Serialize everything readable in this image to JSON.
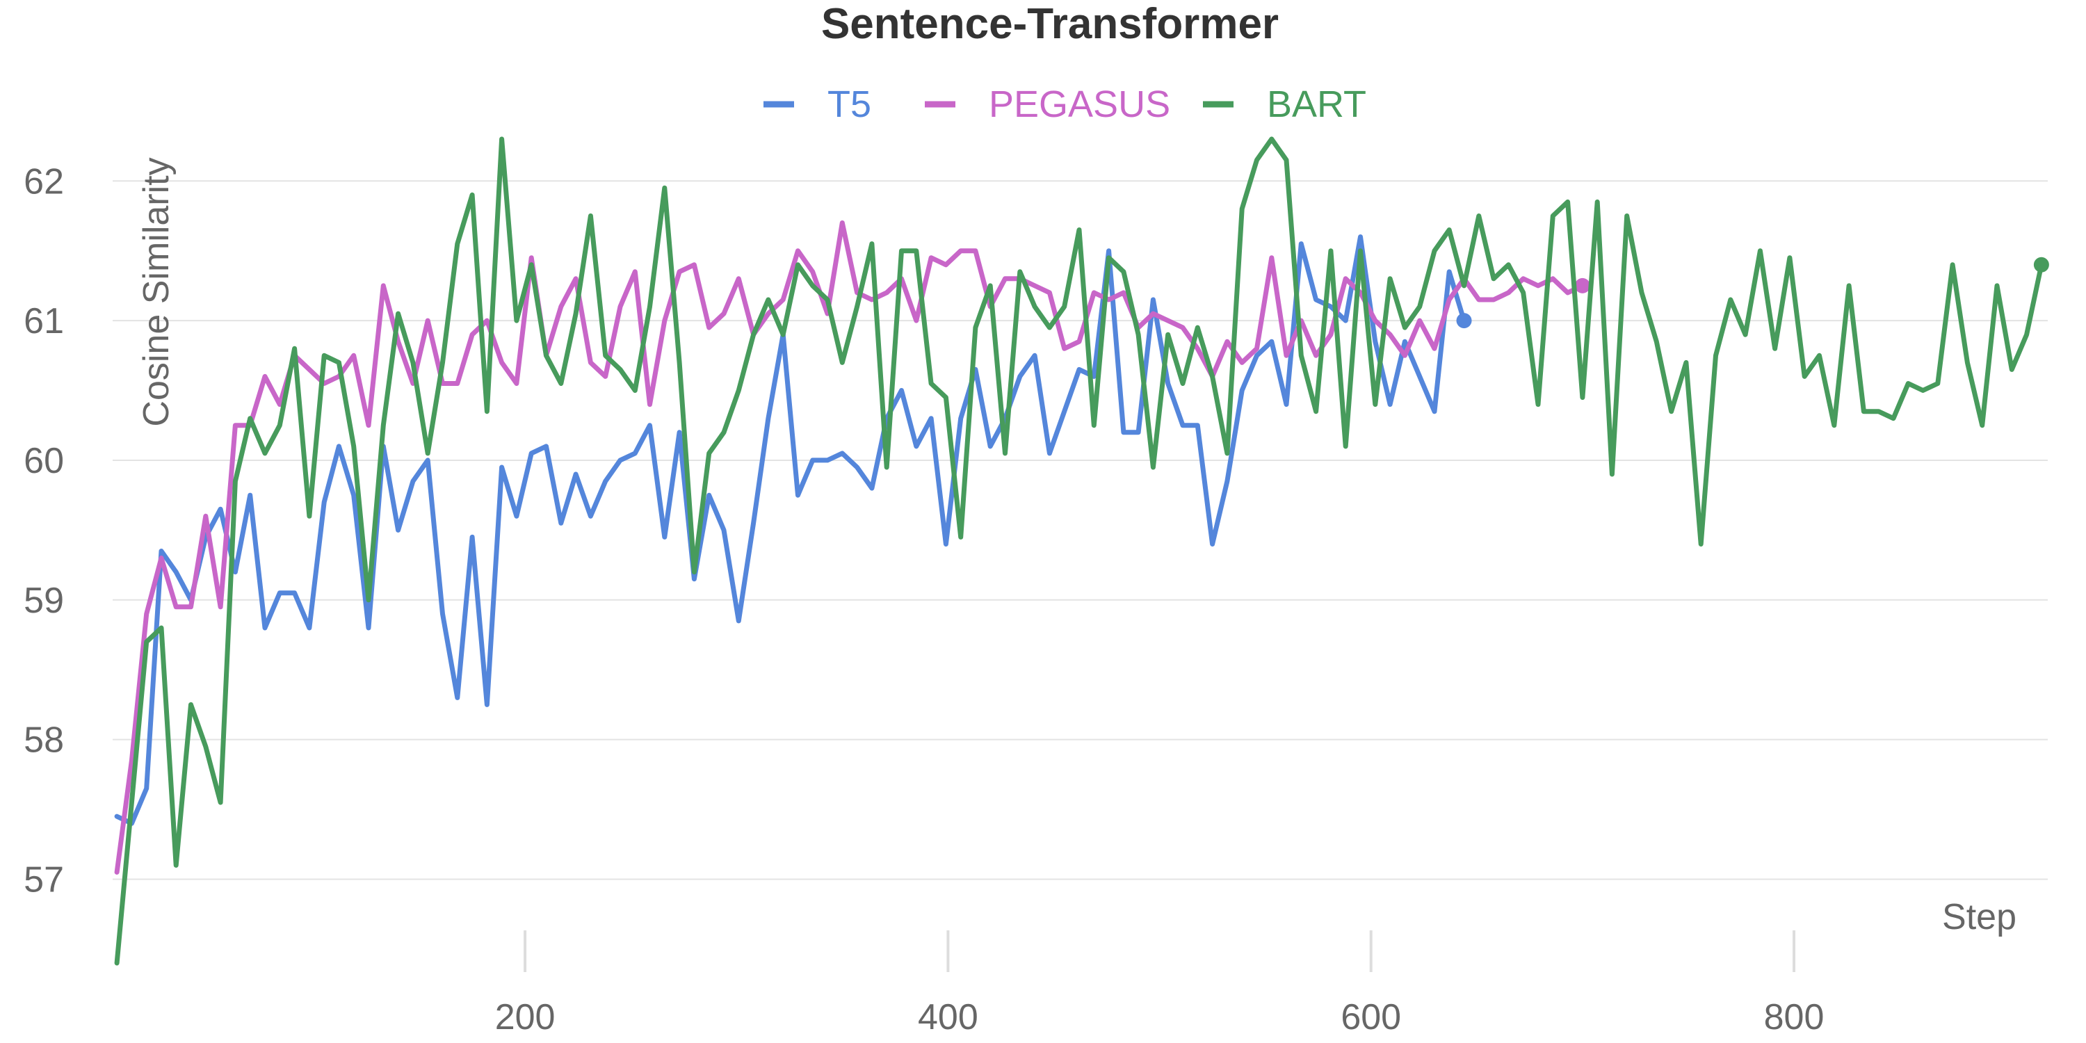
{
  "chart_data": {
    "type": "line",
    "title": "Sentence-Transformer",
    "xlabel": "Step",
    "ylabel": "Cosine Similarity",
    "xlim": [
      5,
      920
    ],
    "ylim": [
      56.4,
      62.3
    ],
    "xticks": [
      200,
      400,
      600,
      800
    ],
    "yticks": [
      57,
      58,
      59,
      60,
      61,
      62
    ],
    "grid": "horizontal",
    "legend_position": "top-center",
    "series": [
      {
        "name": "T5",
        "color": "#5486db",
        "end_marker": true,
        "x": [
          7,
          14,
          21,
          28,
          35,
          42,
          49,
          56,
          63,
          70,
          77,
          84,
          91,
          98,
          105,
          112,
          119,
          126,
          133,
          140,
          147,
          154,
          161,
          168,
          175,
          182,
          189,
          196,
          203,
          210,
          217,
          224,
          231,
          238,
          245,
          252,
          259,
          266,
          273,
          280,
          287,
          294,
          301,
          308,
          315,
          322,
          329,
          336,
          343,
          350,
          357,
          364,
          371,
          378,
          385,
          392,
          399,
          406,
          413,
          420,
          427,
          434,
          441,
          448,
          455,
          462,
          469,
          476,
          483,
          490,
          497,
          504,
          511,
          518,
          525,
          532,
          539,
          546,
          553,
          560,
          567,
          574,
          581,
          588,
          595,
          602,
          609,
          616,
          623,
          630,
          637,
          644
        ],
        "y": [
          57.45,
          57.4,
          57.65,
          59.35,
          59.2,
          59.0,
          59.45,
          59.65,
          59.2,
          59.75,
          58.8,
          59.05,
          59.05,
          58.8,
          59.7,
          60.1,
          59.75,
          58.8,
          60.1,
          59.5,
          59.85,
          60.0,
          58.9,
          58.3,
          59.45,
          58.25,
          59.95,
          59.6,
          60.05,
          60.1,
          59.55,
          59.9,
          59.6,
          59.85,
          60.0,
          60.05,
          60.25,
          59.45,
          60.2,
          59.15,
          59.75,
          59.5,
          58.85,
          59.55,
          60.3,
          60.9,
          59.75,
          60.0,
          60.0,
          60.05,
          59.95,
          59.8,
          60.3,
          60.5,
          60.1,
          60.3,
          59.4,
          60.3,
          60.65,
          60.1,
          60.3,
          60.6,
          60.75,
          60.05,
          60.35,
          60.65,
          60.6,
          61.5,
          60.2,
          60.2,
          61.15,
          60.55,
          60.25,
          60.25,
          59.4,
          59.85,
          60.5,
          60.75,
          60.85,
          60.4,
          61.55,
          61.15,
          61.1,
          61.0,
          61.6,
          60.85,
          60.4,
          60.85,
          60.6,
          60.35,
          61.35,
          61.0
        ]
      },
      {
        "name": "PEGASUS",
        "color": "#c866c8",
        "end_marker": true,
        "x": [
          7,
          14,
          21,
          28,
          35,
          42,
          49,
          56,
          63,
          70,
          77,
          84,
          91,
          98,
          105,
          112,
          119,
          126,
          133,
          140,
          147,
          154,
          161,
          168,
          175,
          182,
          189,
          196,
          203,
          210,
          217,
          224,
          231,
          238,
          245,
          252,
          259,
          266,
          273,
          280,
          287,
          294,
          301,
          308,
          315,
          322,
          329,
          336,
          343,
          350,
          357,
          364,
          371,
          378,
          385,
          392,
          399,
          406,
          413,
          420,
          427,
          434,
          441,
          448,
          455,
          462,
          469,
          476,
          483,
          490,
          497,
          504,
          511,
          518,
          525,
          532,
          539,
          546,
          553,
          560,
          567,
          574,
          581,
          588,
          595,
          602,
          609,
          616,
          623,
          630,
          637,
          644,
          651,
          658,
          665,
          672,
          679,
          686,
          693,
          700
        ],
        "y": [
          57.05,
          57.85,
          58.9,
          59.3,
          58.95,
          58.95,
          59.6,
          58.95,
          60.25,
          60.25,
          60.6,
          60.4,
          60.75,
          60.65,
          60.55,
          60.6,
          60.75,
          60.25,
          61.25,
          60.85,
          60.55,
          61.0,
          60.55,
          60.55,
          60.9,
          61.0,
          60.7,
          60.55,
          61.45,
          60.75,
          61.1,
          61.3,
          60.7,
          60.6,
          61.1,
          61.35,
          60.4,
          61.0,
          61.35,
          61.4,
          60.95,
          61.05,
          61.3,
          60.9,
          61.05,
          61.15,
          61.5,
          61.35,
          61.05,
          61.7,
          61.2,
          61.15,
          61.2,
          61.3,
          61.0,
          61.45,
          61.4,
          61.5,
          61.5,
          61.1,
          61.3,
          61.3,
          61.25,
          61.2,
          60.8,
          60.85,
          61.2,
          61.15,
          61.2,
          60.95,
          61.05,
          61.0,
          60.95,
          60.8,
          60.6,
          60.85,
          60.7,
          60.8,
          61.45,
          60.75,
          61.0,
          60.75,
          60.9,
          61.3,
          61.2,
          61.0,
          60.9,
          60.75,
          61.0,
          60.8,
          61.15,
          61.3,
          61.15,
          61.15,
          61.2,
          61.3,
          61.25,
          61.3,
          61.2,
          61.25
        ]
      },
      {
        "name": "BART",
        "color": "#479b5c",
        "end_marker": true,
        "x": [
          7,
          14,
          21,
          28,
          35,
          42,
          49,
          56,
          63,
          70,
          77,
          84,
          91,
          98,
          105,
          112,
          119,
          126,
          133,
          140,
          147,
          154,
          161,
          168,
          175,
          182,
          189,
          196,
          203,
          210,
          217,
          224,
          231,
          238,
          245,
          252,
          259,
          266,
          273,
          280,
          287,
          294,
          301,
          308,
          315,
          322,
          329,
          336,
          343,
          350,
          357,
          364,
          371,
          378,
          385,
          392,
          399,
          406,
          413,
          420,
          427,
          434,
          441,
          448,
          455,
          462,
          469,
          476,
          483,
          490,
          497,
          504,
          511,
          518,
          525,
          532,
          539,
          546,
          553,
          560,
          567,
          574,
          581,
          588,
          595,
          602,
          609,
          616,
          623,
          630,
          637,
          644,
          651,
          658,
          665,
          672,
          679,
          686,
          693,
          700,
          707,
          714,
          721,
          728,
          735,
          742,
          749,
          756,
          763,
          770,
          777,
          784,
          791,
          798,
          805,
          812,
          819,
          826,
          833,
          840,
          847,
          854,
          861,
          868,
          875,
          882,
          889,
          896,
          903,
          910,
          917
        ],
        "y": [
          56.4,
          57.55,
          58.7,
          58.8,
          57.1,
          58.25,
          57.95,
          57.55,
          59.85,
          60.3,
          60.05,
          60.25,
          60.8,
          59.6,
          60.75,
          60.7,
          60.1,
          59.0,
          60.25,
          61.05,
          60.7,
          60.05,
          60.7,
          61.55,
          61.9,
          60.35,
          62.3,
          61.0,
          61.4,
          60.75,
          60.55,
          61.05,
          61.75,
          60.75,
          60.65,
          60.5,
          61.1,
          61.95,
          60.7,
          59.2,
          60.05,
          60.2,
          60.5,
          60.9,
          61.15,
          60.9,
          61.4,
          61.25,
          61.15,
          60.7,
          61.1,
          61.55,
          59.95,
          61.5,
          61.5,
          60.55,
          60.45,
          59.45,
          60.95,
          61.25,
          60.05,
          61.35,
          61.1,
          60.95,
          61.1,
          61.65,
          60.25,
          61.45,
          61.35,
          60.9,
          59.95,
          60.9,
          60.55,
          60.95,
          60.6,
          60.05,
          61.8,
          62.15,
          62.3,
          62.15,
          60.75,
          60.35,
          61.5,
          60.1,
          61.5,
          60.4,
          61.3,
          60.95,
          61.1,
          61.5,
          61.65,
          61.25,
          61.75,
          61.3,
          61.4,
          61.2,
          60.4,
          61.75,
          61.85,
          60.45,
          61.85,
          59.9,
          61.75,
          61.2,
          60.85,
          60.35,
          60.7,
          59.4,
          60.75,
          61.15,
          60.9,
          61.5,
          60.8,
          61.45,
          60.6,
          60.75,
          60.25,
          61.25,
          60.35,
          60.35,
          60.3,
          60.55,
          60.5,
          60.55,
          61.4,
          60.7,
          60.25,
          61.25,
          60.65,
          60.9,
          61.4
        ]
      }
    ]
  }
}
